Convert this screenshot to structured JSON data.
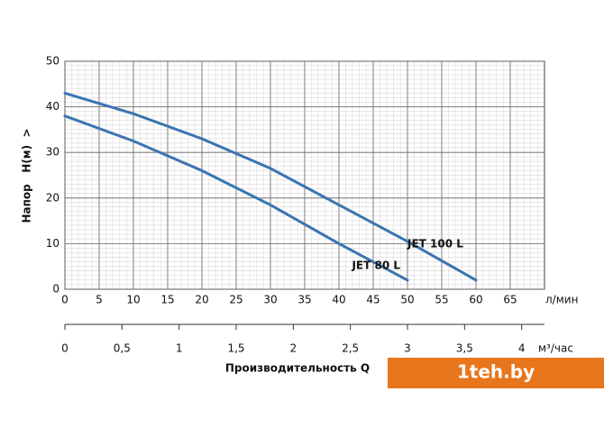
{
  "chart_data": {
    "type": "line",
    "ylabel": "Напор   H(м)  >",
    "x_unit": "л/мин",
    "x": [
      0,
      10,
      20,
      30,
      40,
      50,
      60
    ],
    "series": [
      {
        "name": "JET 100 L",
        "color": "#3b74b0",
        "values": [
          43,
          38.5,
          33,
          26.5,
          18.5,
          10.5,
          2
        ]
      },
      {
        "name": "JET 80 L",
        "color": "#3b74b0",
        "values": [
          38,
          32.5,
          26,
          18.5,
          10,
          2,
          null
        ]
      }
    ],
    "xlim": [
      0,
      70
    ],
    "xticks": [
      0,
      5,
      10,
      15,
      20,
      25,
      30,
      35,
      40,
      45,
      50,
      55,
      60,
      65
    ],
    "ylim": [
      0,
      50
    ],
    "yticks": [
      0,
      10,
      20,
      30,
      40,
      50
    ],
    "grid": true,
    "x2_unit": "м³/час",
    "x2label": "Производительность Q",
    "x2lim": [
      0,
      4.2
    ],
    "x2ticks": [
      0,
      {
        "value": 0.5,
        "label": "0,5"
      },
      1,
      {
        "value": 1.5,
        "label": "1,5"
      },
      2,
      {
        "value": 2.5,
        "label": "2,5"
      },
      3,
      {
        "value": 3.5,
        "label": "3,5"
      },
      4
    ],
    "watermark": "1teh.by"
  }
}
